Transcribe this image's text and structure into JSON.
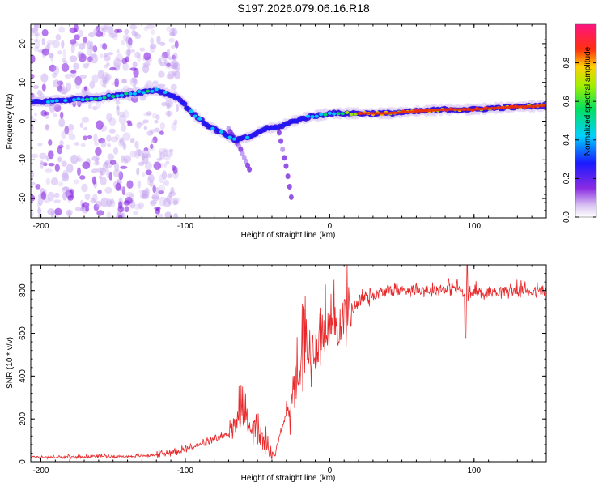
{
  "title": "S197.2026.079.06.16.R18",
  "chart_data": [
    {
      "type": "heatmap",
      "title": "S197.2026.079.06.16.R18",
      "xlabel": "Height of straight line (km)",
      "ylabel": "Frequency (Hz)",
      "xlim": [
        -207,
        150
      ],
      "ylim": [
        -25,
        25
      ],
      "xticks": [
        -200,
        -100,
        0,
        100
      ],
      "xtick_labels": [
        "-200",
        "-100",
        "0",
        "100"
      ],
      "yticks": [
        20,
        10,
        0,
        -10,
        -20
      ],
      "ytick_labels": [
        "20",
        "10",
        "0",
        "-10",
        "-20"
      ],
      "grid": false,
      "ridge": {
        "x": [
          -200,
          -180,
          -160,
          -140,
          -120,
          -105,
          -95,
          -85,
          -75,
          -65,
          -55,
          -45,
          -35,
          -25,
          -15,
          0,
          20,
          40,
          60,
          80,
          100,
          120,
          150
        ],
        "y": [
          5,
          5.5,
          6,
          7,
          8,
          6,
          2,
          -1,
          -3,
          -5,
          -4,
          -2,
          -1.5,
          0,
          1,
          2,
          2,
          2,
          2.5,
          3,
          3,
          3.5,
          4
        ],
        "amplitude": [
          0.45,
          0.5,
          0.55,
          0.6,
          0.5,
          0.4,
          0.45,
          0.4,
          0.45,
          0.5,
          0.45,
          0.4,
          0.35,
          0.4,
          0.5,
          0.6,
          0.9,
          0.85,
          0.95,
          0.9,
          0.95,
          0.9,
          0.9
        ]
      },
      "branches": [
        {
          "x": [
            -70,
            -62,
            -55
          ],
          "y": [
            -2,
            -7,
            -13
          ]
        },
        {
          "x": [
            -35,
            -30,
            -26
          ],
          "y": [
            -3,
            -12,
            -21
          ]
        }
      ],
      "noise_region_x": [
        -207,
        -115
      ],
      "colorbar": {
        "label": "Normalized spectral amplitude",
        "range": [
          0,
          1
        ],
        "ticks": [
          0.0,
          0.2,
          0.4,
          0.6,
          0.8
        ],
        "tick_labels": [
          "0.0",
          "0.2",
          "0.4",
          "0.6",
          "0.8"
        ]
      }
    },
    {
      "type": "line",
      "xlabel": "Height of straight line (km)",
      "ylabel": "SNR (10 * v/v)",
      "xlim": [
        -207,
        150
      ],
      "ylim": [
        0,
        920
      ],
      "xticks": [
        -200,
        -100,
        0,
        100
      ],
      "xtick_labels": [
        "-200",
        "-100",
        "0",
        "100"
      ],
      "yticks": [
        0,
        200,
        400,
        600,
        800
      ],
      "ytick_labels": [
        "0",
        "200",
        "400",
        "600",
        "800"
      ],
      "color": "#e8282a",
      "series": [
        {
          "name": "SNR",
          "x": [
            -207,
            -180,
            -160,
            -140,
            -120,
            -110,
            -100,
            -90,
            -80,
            -70,
            -60,
            -50,
            -42,
            -38,
            -35,
            -30,
            -25,
            -20,
            -15,
            -10,
            -5,
            0,
            5,
            10,
            15,
            20,
            25,
            30,
            35,
            40,
            50,
            60,
            70,
            80,
            85,
            90,
            94,
            95,
            96,
            100,
            110,
            120,
            130,
            140,
            150
          ],
          "y": [
            20,
            20,
            25,
            22,
            30,
            40,
            55,
            75,
            95,
            130,
            185,
            120,
            40,
            30,
            110,
            220,
            300,
            370,
            440,
            500,
            560,
            580,
            600,
            650,
            700,
            740,
            760,
            770,
            780,
            790,
            795,
            800,
            795,
            800,
            805,
            800,
            760,
            700,
            760,
            790,
            785,
            790,
            795,
            790,
            790
          ]
        }
      ],
      "notable_points": [
        {
          "x": 94,
          "y": 580
        },
        {
          "x": 95,
          "y": 920
        },
        {
          "x": -60,
          "y": 380
        },
        {
          "x": -18,
          "y": 790
        }
      ]
    }
  ]
}
